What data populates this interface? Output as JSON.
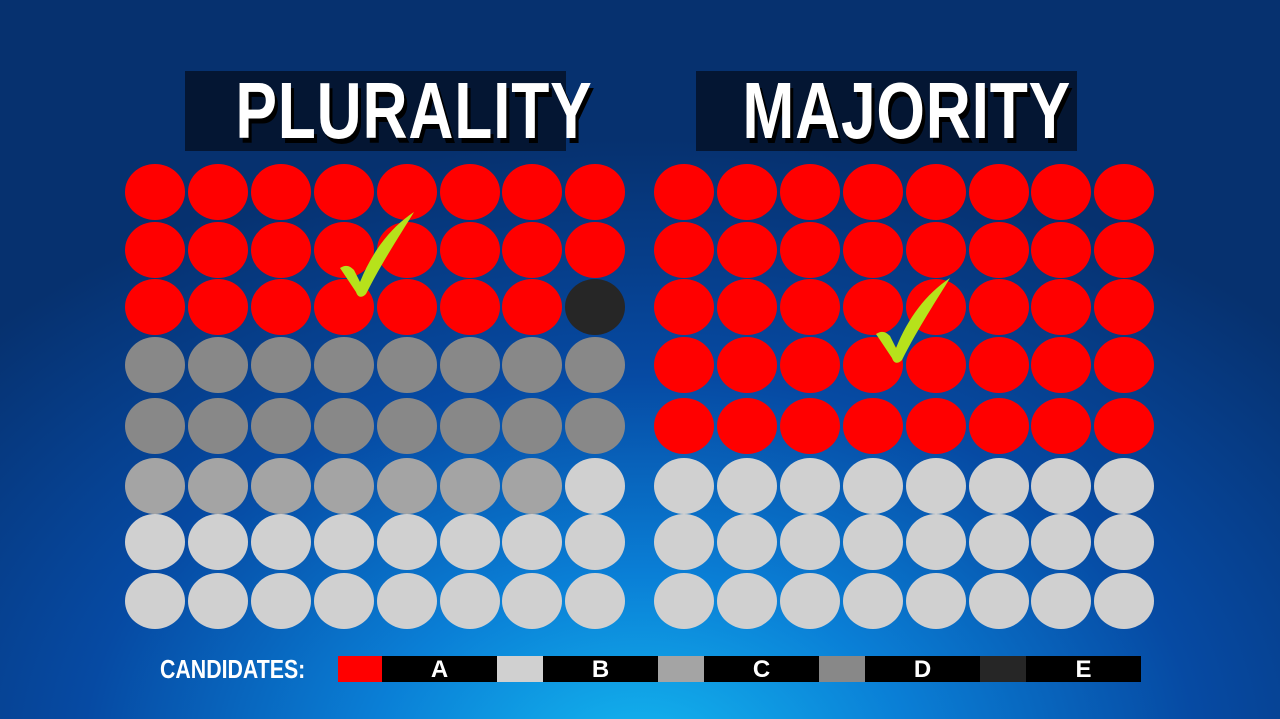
{
  "titles": {
    "left": "PLURALITY",
    "right": "MAJORITY"
  },
  "legend": {
    "label": "CANDIDATES:",
    "candidates": [
      {
        "name": "A",
        "color": "#ff0000"
      },
      {
        "name": "B",
        "color": "#d0d0d0"
      },
      {
        "name": "C",
        "color": "#a4a4a4"
      },
      {
        "name": "D",
        "color": "#888888"
      },
      {
        "name": "E",
        "color": "#262626"
      }
    ]
  },
  "grids": {
    "plurality": {
      "rows": 8,
      "cols": 8,
      "counts": {
        "A": 23,
        "E": 1,
        "D": 16,
        "C": 7,
        "B": 17
      },
      "winner": "A"
    },
    "majority": {
      "rows": 8,
      "cols": 8,
      "counts": {
        "A": 40,
        "B": 24
      },
      "winner": "A"
    }
  },
  "check_color": "#b6e21b"
}
